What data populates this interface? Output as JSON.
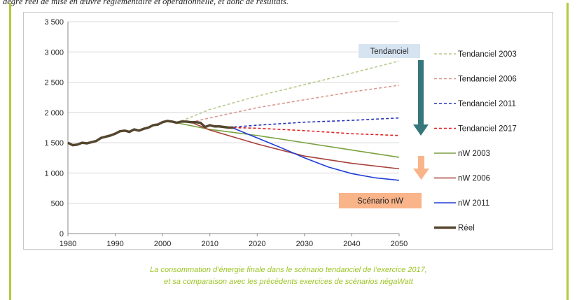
{
  "top_text": "degré réel de mise en œuvre réglementaire et opérationnelle, et donc de résultats.",
  "caption_lines": [
    "La consommation d’énergie finale dans le scénario tendanciel de l’exercice 2017,",
    "et sa comparaison avec les précédents exercices de scénarios négaWatt"
  ],
  "colors": {
    "frame": "#b5c83c",
    "caption": "#9dc425",
    "label_tendanciel_bg": "#d6e4f2",
    "label_scenario_bg": "#f9b48a",
    "arrow_tendanciel": "#35777a",
    "arrow_scenario": "#f9b48a"
  },
  "chart_data": {
    "type": "line",
    "title": "",
    "xlabel": "",
    "ylabel": "",
    "xlim": [
      1980,
      2050
    ],
    "ylim": [
      0,
      3500
    ],
    "x_ticks": [
      1980,
      1990,
      2000,
      2010,
      2020,
      2030,
      2040,
      2050
    ],
    "y_ticks": [
      0,
      500,
      1000,
      1500,
      2000,
      2500,
      3000,
      3500
    ],
    "y_tick_labels": [
      "0",
      "500",
      "1 000",
      "1 500",
      "2 000",
      "2 500",
      "3 000",
      "3 500"
    ],
    "grid": "horizontal",
    "legend_position": "right",
    "annotations": [
      {
        "text": "Tendanciel",
        "kind": "label-box",
        "color": "#d6e4f2"
      },
      {
        "text": "Scénario nW",
        "kind": "label-box",
        "color": "#f9b48a"
      }
    ],
    "series": [
      {
        "name": "Tendanciel 2003",
        "color": "#b5c98a",
        "dash": "dashed",
        "x": [
          2003,
          2010,
          2020,
          2030,
          2040,
          2050
        ],
        "y": [
          1830,
          2050,
          2270,
          2460,
          2650,
          2850
        ]
      },
      {
        "name": "Tendanciel 2006",
        "color": "#d99890",
        "dash": "dashed",
        "x": [
          2006,
          2010,
          2020,
          2030,
          2040,
          2050
        ],
        "y": [
          1840,
          1910,
          2080,
          2210,
          2340,
          2450
        ]
      },
      {
        "name": "Tendanciel 2011",
        "color": "#2633b8",
        "dash": "dashed",
        "x": [
          2011,
          2015,
          2020,
          2030,
          2040,
          2050
        ],
        "y": [
          1760,
          1760,
          1790,
          1840,
          1870,
          1910
        ]
      },
      {
        "name": "Tendanciel 2017",
        "color": "#e02020",
        "dash": "dashed",
        "x": [
          2015,
          2020,
          2030,
          2040,
          2050
        ],
        "y": [
          1750,
          1740,
          1700,
          1650,
          1620
        ]
      },
      {
        "name": "nW 2003",
        "color": "#7aa13f",
        "dash": "solid",
        "x": [
          2003,
          2010,
          2020,
          2030,
          2040,
          2050
        ],
        "y": [
          1830,
          1720,
          1620,
          1500,
          1380,
          1260
        ]
      },
      {
        "name": "nW 2006",
        "color": "#a8403a",
        "dash": "solid",
        "x": [
          2006,
          2010,
          2020,
          2030,
          2040,
          2050
        ],
        "y": [
          1840,
          1710,
          1480,
          1280,
          1160,
          1070
        ]
      },
      {
        "name": "nW 2011",
        "color": "#1f3ed6",
        "dash": "solid",
        "x": [
          2011,
          2015,
          2020,
          2025,
          2030,
          2035,
          2040,
          2045,
          2050
        ],
        "y": [
          1770,
          1740,
          1580,
          1420,
          1250,
          1100,
          990,
          920,
          880
        ]
      },
      {
        "name": "Réel",
        "color": "#54452e",
        "dash": "solid",
        "x": [
          1980,
          1981,
          1982,
          1983,
          1984,
          1985,
          1986,
          1987,
          1988,
          1989,
          1990,
          1991,
          1992,
          1993,
          1994,
          1995,
          1996,
          1997,
          1998,
          1999,
          2000,
          2001,
          2002,
          2003,
          2004,
          2005,
          2006,
          2007,
          2008,
          2009,
          2010,
          2011,
          2012,
          2013,
          2014,
          2015
        ],
        "y": [
          1500,
          1460,
          1470,
          1500,
          1490,
          1510,
          1530,
          1580,
          1600,
          1620,
          1650,
          1690,
          1700,
          1680,
          1720,
          1700,
          1730,
          1750,
          1790,
          1800,
          1840,
          1860,
          1850,
          1830,
          1850,
          1850,
          1840,
          1840,
          1830,
          1760,
          1790,
          1770,
          1770,
          1760,
          1750,
          1750
        ]
      }
    ]
  }
}
